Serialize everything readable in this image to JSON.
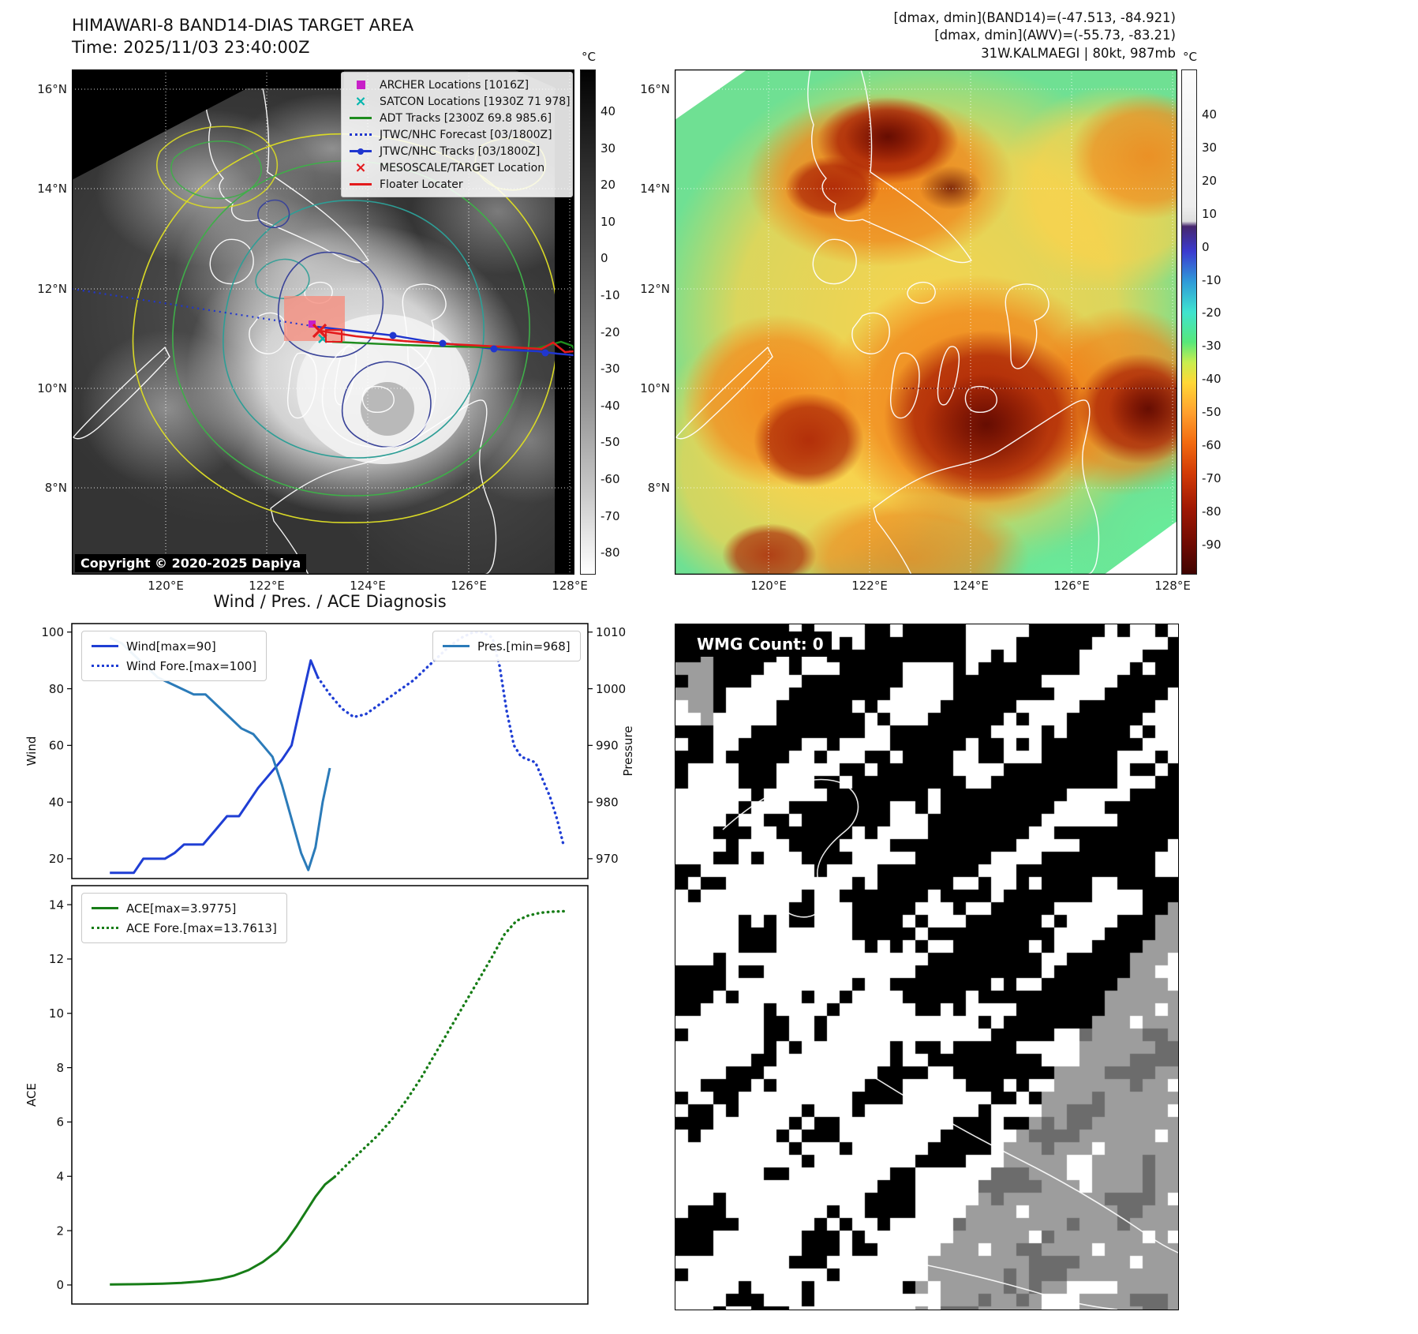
{
  "band14": {
    "title": "HIMAWARI-8 BAND14-DIAS TARGET AREA",
    "time": "Time: 2025/11/03 23:40:00Z",
    "copyright": "Copyright © 2020-2025 Dapiya",
    "colorbar": {
      "unit": "°C",
      "ticks": [
        40,
        30,
        20,
        10,
        0,
        -10,
        -20,
        -30,
        -40,
        -50,
        -60,
        -70,
        -80
      ]
    },
    "xticks": [
      "120°E",
      "122°E",
      "124°E",
      "126°E",
      "128°E"
    ],
    "yticks": [
      "16°N",
      "14°N",
      "12°N",
      "10°N",
      "8°N"
    ],
    "legend": [
      {
        "label": "ARCHER Locations [1016Z]",
        "marker": "square",
        "color": "#c820c8"
      },
      {
        "label": "SATCON Locations [1930Z 71 978]",
        "marker": "x",
        "color": "#00b5ad"
      },
      {
        "label": "ADT Tracks [2300Z 69.8 985.6]",
        "marker": "line",
        "color": "#1e8c1e"
      },
      {
        "label": "JTWC/NHC Forecast [03/1800Z]",
        "marker": "dotted",
        "color": "#2036cf"
      },
      {
        "label": "JTWC/NHC Tracks [03/1800Z]",
        "marker": "line-dot",
        "color": "#2036cf"
      },
      {
        "label": "MESOSCALE/TARGET Location",
        "marker": "x",
        "color": "#e31a1c"
      },
      {
        "label": "Floater Locater",
        "marker": "line",
        "color": "#e31a1c"
      }
    ]
  },
  "awv": {
    "header": [
      "[dmax, dmin](BAND14)=(-47.513, -84.921)",
      "[dmax, dmin](AWV)=(-55.73, -83.21)",
      "31W.KALMAEGI | 80kt, 987mb"
    ],
    "colorbar": {
      "unit": "°C",
      "ticks": [
        40,
        30,
        20,
        10,
        0,
        -10,
        -20,
        -30,
        -40,
        -50,
        -60,
        -70,
        -80,
        -90
      ]
    },
    "xticks": [
      "120°E",
      "122°E",
      "124°E",
      "126°E",
      "128°E"
    ],
    "yticks": [
      "16°N",
      "14°N",
      "12°N",
      "10°N",
      "8°N"
    ]
  },
  "diagnosis": {
    "title": "Wind / Pres. / ACE Diagnosis"
  },
  "wmg": {
    "label": "WMG Count: 0"
  },
  "chart_data": [
    {
      "type": "line",
      "panel": "wind-pressure",
      "ylabel_left": "Wind",
      "ylabel_right": "Pressure",
      "ylim_left": [
        13,
        103
      ],
      "yticks_left": [
        20,
        40,
        60,
        80,
        100
      ],
      "ylim_right": [
        966.5,
        1011.5
      ],
      "yticks_right": [
        970,
        980,
        990,
        1000,
        1010
      ],
      "xlim": [
        0,
        1
      ],
      "grid": false,
      "series": [
        {
          "name": "Wind[max=90]",
          "axis": "left",
          "style": "solid",
          "color": "#1f3ed4",
          "x": [
            0.04,
            0.07,
            0.09,
            0.11,
            0.135,
            0.155,
            0.175,
            0.195,
            0.215,
            0.235,
            0.26,
            0.285,
            0.31,
            0.33,
            0.35,
            0.375,
            0.4,
            0.42,
            0.44,
            0.46,
            0.475
          ],
          "y": [
            15,
            15,
            15,
            20,
            20,
            20,
            22,
            25,
            25,
            25,
            30,
            35,
            35,
            40,
            45,
            50,
            55,
            60,
            75,
            90,
            84
          ]
        },
        {
          "name": "Wind Fore.[max=100]",
          "axis": "left",
          "style": "dotted",
          "color": "#1f3ed4",
          "x": [
            0.475,
            0.5,
            0.525,
            0.55,
            0.575,
            0.6,
            0.625,
            0.65,
            0.675,
            0.7,
            0.725,
            0.75,
            0.775,
            0.8,
            0.82,
            0.84,
            0.855,
            0.87,
            0.885,
            0.9,
            0.915,
            0.93,
            0.945,
            0.96,
            0.975,
            0.99
          ],
          "y": [
            84,
            78,
            73,
            70,
            71,
            74,
            77,
            80,
            83,
            87,
            91,
            95,
            98,
            100,
            100,
            98,
            88,
            72,
            60,
            56,
            55,
            54,
            48,
            42,
            34,
            24
          ]
        },
        {
          "name": "Pres.[min=968]",
          "axis": "right",
          "style": "solid",
          "color": "#2b7bb9",
          "x": [
            0.04,
            0.065,
            0.09,
            0.115,
            0.14,
            0.165,
            0.19,
            0.215,
            0.24,
            0.265,
            0.29,
            0.315,
            0.34,
            0.36,
            0.38,
            0.4,
            0.42,
            0.44,
            0.455,
            0.47,
            0.485,
            0.5
          ],
          "y": [
            1009,
            1008,
            1006,
            1004,
            1002,
            1001,
            1000,
            999,
            999,
            997,
            995,
            993,
            992,
            990,
            988,
            983,
            977,
            971,
            968,
            972,
            980,
            986
          ]
        }
      ]
    },
    {
      "type": "line",
      "panel": "ace",
      "ylabel_left": "ACE",
      "ylim_left": [
        -0.7,
        14.7
      ],
      "yticks_left": [
        0,
        2,
        4,
        6,
        8,
        10,
        12,
        14
      ],
      "xlim": [
        0,
        1
      ],
      "grid": false,
      "series": [
        {
          "name": "ACE[max=3.9775]",
          "axis": "left",
          "style": "solid",
          "color": "#177d17",
          "x": [
            0.04,
            0.1,
            0.15,
            0.19,
            0.23,
            0.27,
            0.3,
            0.33,
            0.36,
            0.39,
            0.41,
            0.43,
            0.45,
            0.47,
            0.49,
            0.51
          ],
          "y": [
            0.02,
            0.03,
            0.05,
            0.08,
            0.13,
            0.22,
            0.35,
            0.55,
            0.85,
            1.25,
            1.65,
            2.15,
            2.7,
            3.25,
            3.7,
            3.98
          ]
        },
        {
          "name": "ACE Fore.[max=13.7613]",
          "axis": "left",
          "style": "dotted",
          "color": "#177d17",
          "x": [
            0.51,
            0.54,
            0.57,
            0.6,
            0.63,
            0.66,
            0.69,
            0.72,
            0.75,
            0.78,
            0.81,
            0.84,
            0.865,
            0.89,
            0.915,
            0.94,
            0.965,
            0.99
          ],
          "y": [
            3.98,
            4.5,
            5.0,
            5.5,
            6.1,
            6.8,
            7.6,
            8.5,
            9.4,
            10.3,
            11.2,
            12.1,
            12.9,
            13.4,
            13.6,
            13.7,
            13.74,
            13.76
          ]
        }
      ]
    }
  ]
}
